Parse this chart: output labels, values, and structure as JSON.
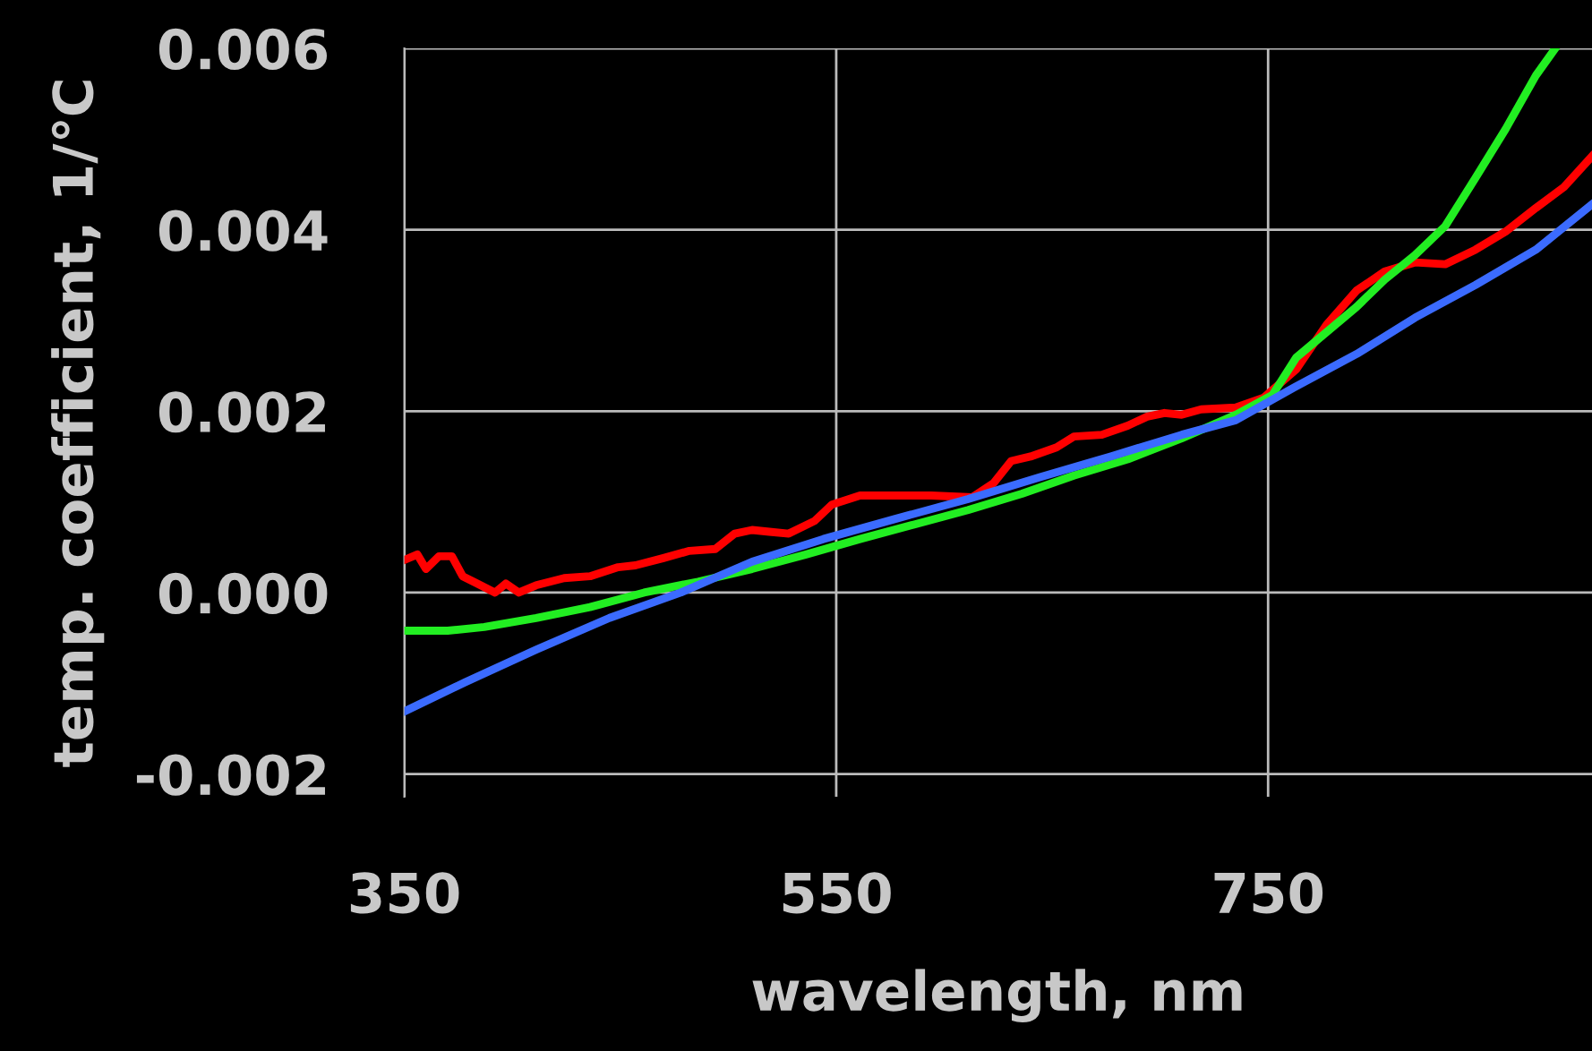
{
  "chart_data": {
    "type": "line",
    "xlabel": "wavelength, nm",
    "ylabel": "temp. coefficient, 1/℃",
    "xlim": [
      350,
      900
    ],
    "ylim": [
      -0.00225,
      0.006
    ],
    "xticks": [
      350,
      550,
      750
    ],
    "yticks": [
      {
        "value": -0.002,
        "label": "-0.002"
      },
      {
        "value": 0,
        "label": "0.000"
      },
      {
        "value": 0.002,
        "label": "0.002"
      },
      {
        "value": 0.004,
        "label": "0.004"
      },
      {
        "value": 0.006,
        "label": "0.006"
      }
    ],
    "grid": true,
    "marker": "none",
    "line_style": "solid",
    "series": [
      {
        "color": "#ff0000",
        "x": [
          350,
          356,
          360,
          366,
          372,
          377,
          382,
          392,
          397,
          403,
          411,
          424,
          436,
          449,
          457,
          470,
          482,
          494,
          503,
          511,
          519,
          528,
          540,
          548,
          561,
          594,
          613,
          623,
          631,
          640,
          652,
          660,
          673,
          685,
          694,
          702,
          710,
          719,
          735,
          748,
          763,
          777,
          791,
          804,
          818,
          832,
          846,
          860,
          874,
          887,
          900
        ],
        "values": [
          0.00036,
          0.00042,
          0.00026,
          0.0004,
          0.0004,
          0.00018,
          0.00012,
          0,
          0.0001,
          0,
          8e-05,
          0.00016,
          0.00018,
          0.00028,
          0.0003,
          0.00038,
          0.00046,
          0.00048,
          0.00065,
          0.00069,
          0.00067,
          0.00065,
          0.00079,
          0.00097,
          0.00107,
          0.00107,
          0.00105,
          0.00121,
          0.00145,
          0.0015,
          0.0016,
          0.00172,
          0.00174,
          0.00184,
          0.00194,
          0.00198,
          0.00196,
          0.00202,
          0.00204,
          0.00215,
          0.00246,
          0.00295,
          0.00333,
          0.00354,
          0.00364,
          0.00362,
          0.00378,
          0.00398,
          0.00424,
          0.00447,
          0.00481
        ]
      },
      {
        "color": "#22ee22",
        "x": [
          350,
          370,
          387,
          411,
          436,
          461,
          486,
          511,
          536,
          561,
          586,
          611,
          636,
          660,
          685,
          710,
          735,
          752,
          763,
          791,
          804,
          818,
          832,
          846,
          860,
          874,
          883
        ],
        "values": [
          -0.00042,
          -0.00042,
          -0.00038,
          -0.00028,
          -0.00016,
          0,
          0.00012,
          0.00026,
          0.00042,
          0.00059,
          0.00075,
          0.00091,
          0.00109,
          0.00129,
          0.00147,
          0.0017,
          0.00196,
          0.00218,
          0.00259,
          0.00315,
          0.00345,
          0.00372,
          0.00404,
          0.00457,
          0.00511,
          0.0057,
          0.006
        ]
      },
      {
        "color": "#3b6bff",
        "x": [
          350,
          378,
          411,
          445,
          478,
          511,
          544,
          577,
          611,
          644,
          677,
          710,
          735,
          762,
          791,
          818,
          846,
          874,
          900
        ],
        "values": [
          -0.00131,
          -0.00099,
          -0.00063,
          -0.00028,
          0,
          0.00034,
          0.00059,
          0.00081,
          0.00103,
          0.00127,
          0.0015,
          0.00174,
          0.0019,
          0.00226,
          0.00263,
          0.00303,
          0.00339,
          0.00378,
          0.00428
        ]
      }
    ]
  }
}
